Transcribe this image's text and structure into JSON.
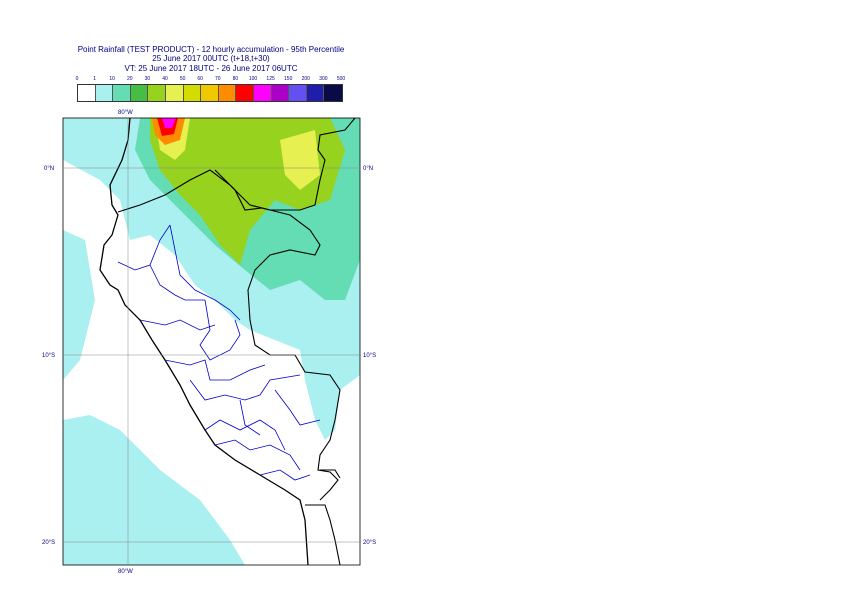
{
  "title": {
    "line1": "Point Rainfall (TEST PRODUCT) - 12 hourly accumulation - 95th Percentile",
    "line2": "25 June 2017 00UTC (t+18,t+30)",
    "line3": "VT: 25 June 2017 18UTC - 26 June 2017 06UTC"
  },
  "legend": {
    "labels": [
      "0",
      "1",
      "10",
      "20",
      "30",
      "40",
      "50",
      "60",
      "70",
      "80",
      "100",
      "125",
      "150",
      "200",
      "300",
      "500"
    ],
    "colors": [
      "#ffffff",
      "#aaf0f0",
      "#64dcb4",
      "#46be46",
      "#96d21e",
      "#e6f050",
      "#d2dc00",
      "#f0c800",
      "#ff8c00",
      "#ff0000",
      "#ff00ff",
      "#aa00c8",
      "#6450f0",
      "#1e1eaa",
      "#0a0a46"
    ]
  },
  "axes": {
    "lon_top": "80°W",
    "lon_bottom": "80°W",
    "lat_0_left": "0°N",
    "lat_0_right": "0°N",
    "lat_10_left": "10°S",
    "lat_10_right": "10°S",
    "lat_20_left": "20°S",
    "lat_20_right": "20°S"
  },
  "map": {
    "rain_colors": {
      "light": "#aaf0f0",
      "medium": "#64dcb4",
      "green": "#96d21e",
      "yellow": "#e6f050",
      "peak_red": "#ff0000",
      "peak_magenta": "#ff00ff",
      "peak_orange": "#ff8c00"
    },
    "coastline_color": "#000000",
    "admin_color": "#0000c8"
  }
}
